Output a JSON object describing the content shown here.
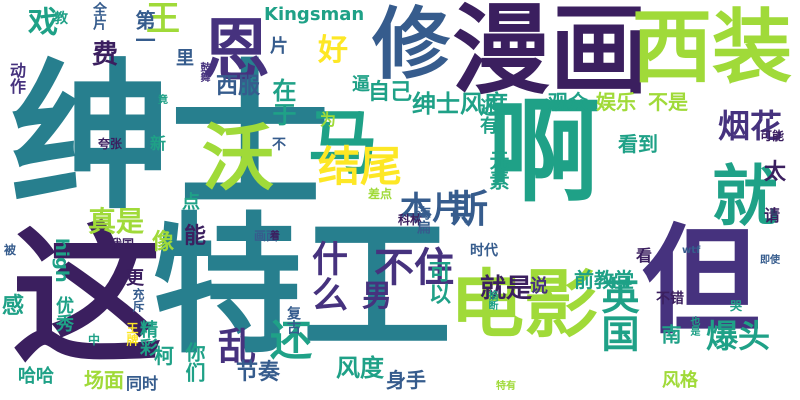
{
  "palette": {
    "dark_purple": "#3b1f5f",
    "indigo": "#46327e",
    "blue": "#365c8d",
    "teal_blue": "#277f8e",
    "teal": "#1fa187",
    "green": "#4ac16d",
    "lime": "#a0da39",
    "yellow": "#fde725",
    "background": "#ffffff"
  },
  "words": [
    "绅士",
    "这",
    "特工",
    "啊",
    "但",
    "漫画",
    "修",
    "西装",
    "沃",
    "马",
    "电影",
    "恩",
    "就",
    "结尾",
    "什么",
    "不住",
    "烟花",
    "爆头",
    "还",
    "英国",
    "乱",
    "男",
    "斯",
    "好",
    "本片",
    "绅士风度",
    "费",
    "戏",
    "王",
    "Kingsman",
    "第一",
    "西服",
    "在于",
    "片",
    "里",
    "自己",
    "逼",
    "为",
    "观众",
    "娱乐",
    "不是",
    "风度",
    "太",
    "看到",
    "元素",
    "还有",
    "真是",
    "像",
    "点",
    "能",
    "可以",
    "就是",
    "前教堂",
    "南",
    "柯",
    "你们",
    "节奏",
    "身手",
    "风格",
    "场面",
    "同时",
    "哈哈",
    "感",
    "优秀",
    "high",
    "动作",
    "夸张",
    "被",
    "我国",
    "更",
    "精彩",
    "新",
    "可能",
    "请",
    "看",
    "时代",
    "说",
    "不错",
    "科林",
    "即使",
    "wtf",
    "复古",
    "王牌",
    "差点",
    "不",
    "海扁",
    "教",
    "全片",
    "画面",
    "着",
    "中",
    "特有",
    "哭",
    "竟",
    "充斥",
    "掐断",
    "也是",
    "鼓舞",
    "意外"
  ]
}
